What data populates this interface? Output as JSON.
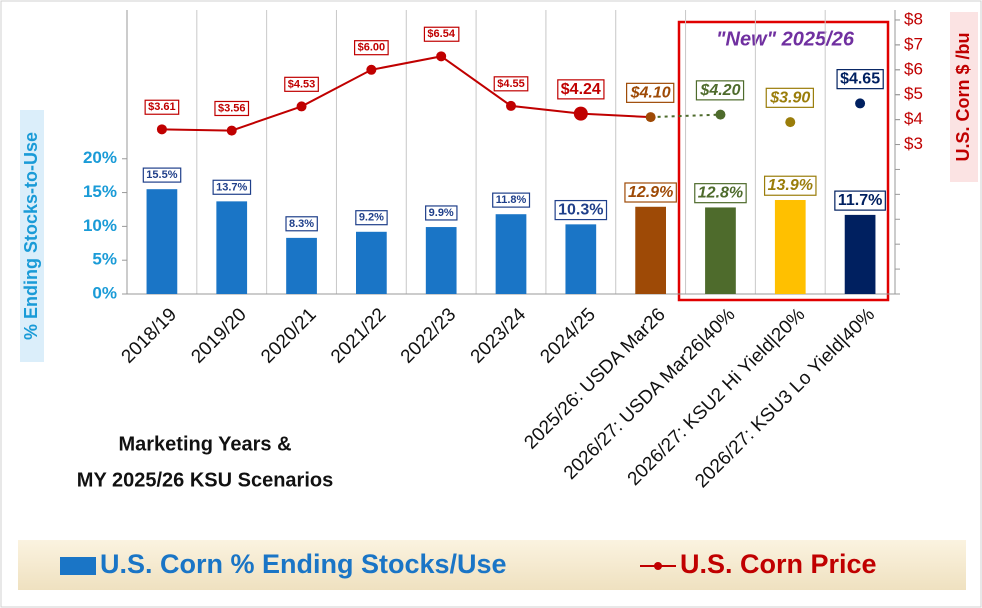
{
  "chart_data": {
    "type": "bar",
    "categories": [
      "2018/19",
      "2019/20",
      "2020/21",
      "2021/22",
      "2022/23",
      "2023/24",
      "2024/25",
      "2025/26: USDA Mar26",
      "2026/27: USDA Mar26|40%",
      "2026/27: KSU2 Hi Yield|20%",
      "2026/27: KSU3 Lo Yield|40%"
    ],
    "series": [
      {
        "name": "U.S. Corn % Ending Stocks/Use",
        "type": "bar",
        "color": "#1a75c6",
        "colors": [
          "#1a75c6",
          "#1a75c6",
          "#1a75c6",
          "#1a75c6",
          "#1a75c6",
          "#1a75c6",
          "#1a75c6",
          "#9e4a06",
          "#4e6b2c",
          "#ffc000",
          "#002060"
        ],
        "label_colors": [
          "#1f3f8a",
          "#1f3f8a",
          "#1f3f8a",
          "#1f3f8a",
          "#1f3f8a",
          "#1f3f8a",
          "#1f3f8a",
          "#9e4a06",
          "#4e6b2c",
          "#9a7d0a",
          "#002060"
        ],
        "values": [
          15.5,
          13.7,
          8.3,
          9.2,
          9.9,
          11.8,
          10.3,
          12.9,
          12.8,
          13.9,
          11.7
        ],
        "value_labels": [
          "15.5%",
          "13.7%",
          "8.3%",
          "9.2%",
          "9.9%",
          "11.8%",
          "10.3%",
          "12.9%",
          "12.8%",
          "13.9%",
          "11.7%"
        ]
      },
      {
        "name": "U.S. Corn Price",
        "type": "line",
        "axis": "y2",
        "color": "#c00000",
        "colors": [
          "#c00000",
          "#c00000",
          "#c00000",
          "#c00000",
          "#c00000",
          "#c00000",
          "#c00000",
          "#9e4a06",
          "#4e6b2c",
          "#9a7d0a",
          "#002060"
        ],
        "values": [
          3.61,
          3.56,
          4.53,
          6.0,
          6.54,
          4.55,
          4.24,
          4.1,
          4.2,
          3.9,
          4.65
        ],
        "value_labels": [
          "$3.61",
          "$3.56",
          "$4.53",
          "$6.00",
          "$6.54",
          "$4.55",
          "$4.24",
          "$4.10",
          "$4.20",
          "$3.90",
          "$4.65"
        ]
      }
    ],
    "ylabel": "% Ending Stocks-to-Use",
    "y2label": "U.S. Corn $ /bu",
    "xlabel_lines": [
      "Marketing Years &",
      "MY 2025/26 KSU Scenarios"
    ],
    "annotation": "\"New\" 2025/26",
    "ylim": [
      0,
      42
    ],
    "yticks": [
      {
        "value": 0,
        "label": "0%"
      },
      {
        "value": 5,
        "label": "5%"
      },
      {
        "value": 10,
        "label": "10%"
      },
      {
        "value": 15,
        "label": "15%"
      },
      {
        "value": 20,
        "label": "20%"
      }
    ],
    "y2lim": [
      -3,
      8.4
    ],
    "y2ticks": [
      {
        "value": 3,
        "label": "$3"
      },
      {
        "value": 4,
        "label": "$4"
      },
      {
        "value": 5,
        "label": "$5"
      },
      {
        "value": 6,
        "label": "$6"
      },
      {
        "value": 7,
        "label": "$7"
      },
      {
        "value": 8,
        "label": "$8"
      }
    ]
  }
}
